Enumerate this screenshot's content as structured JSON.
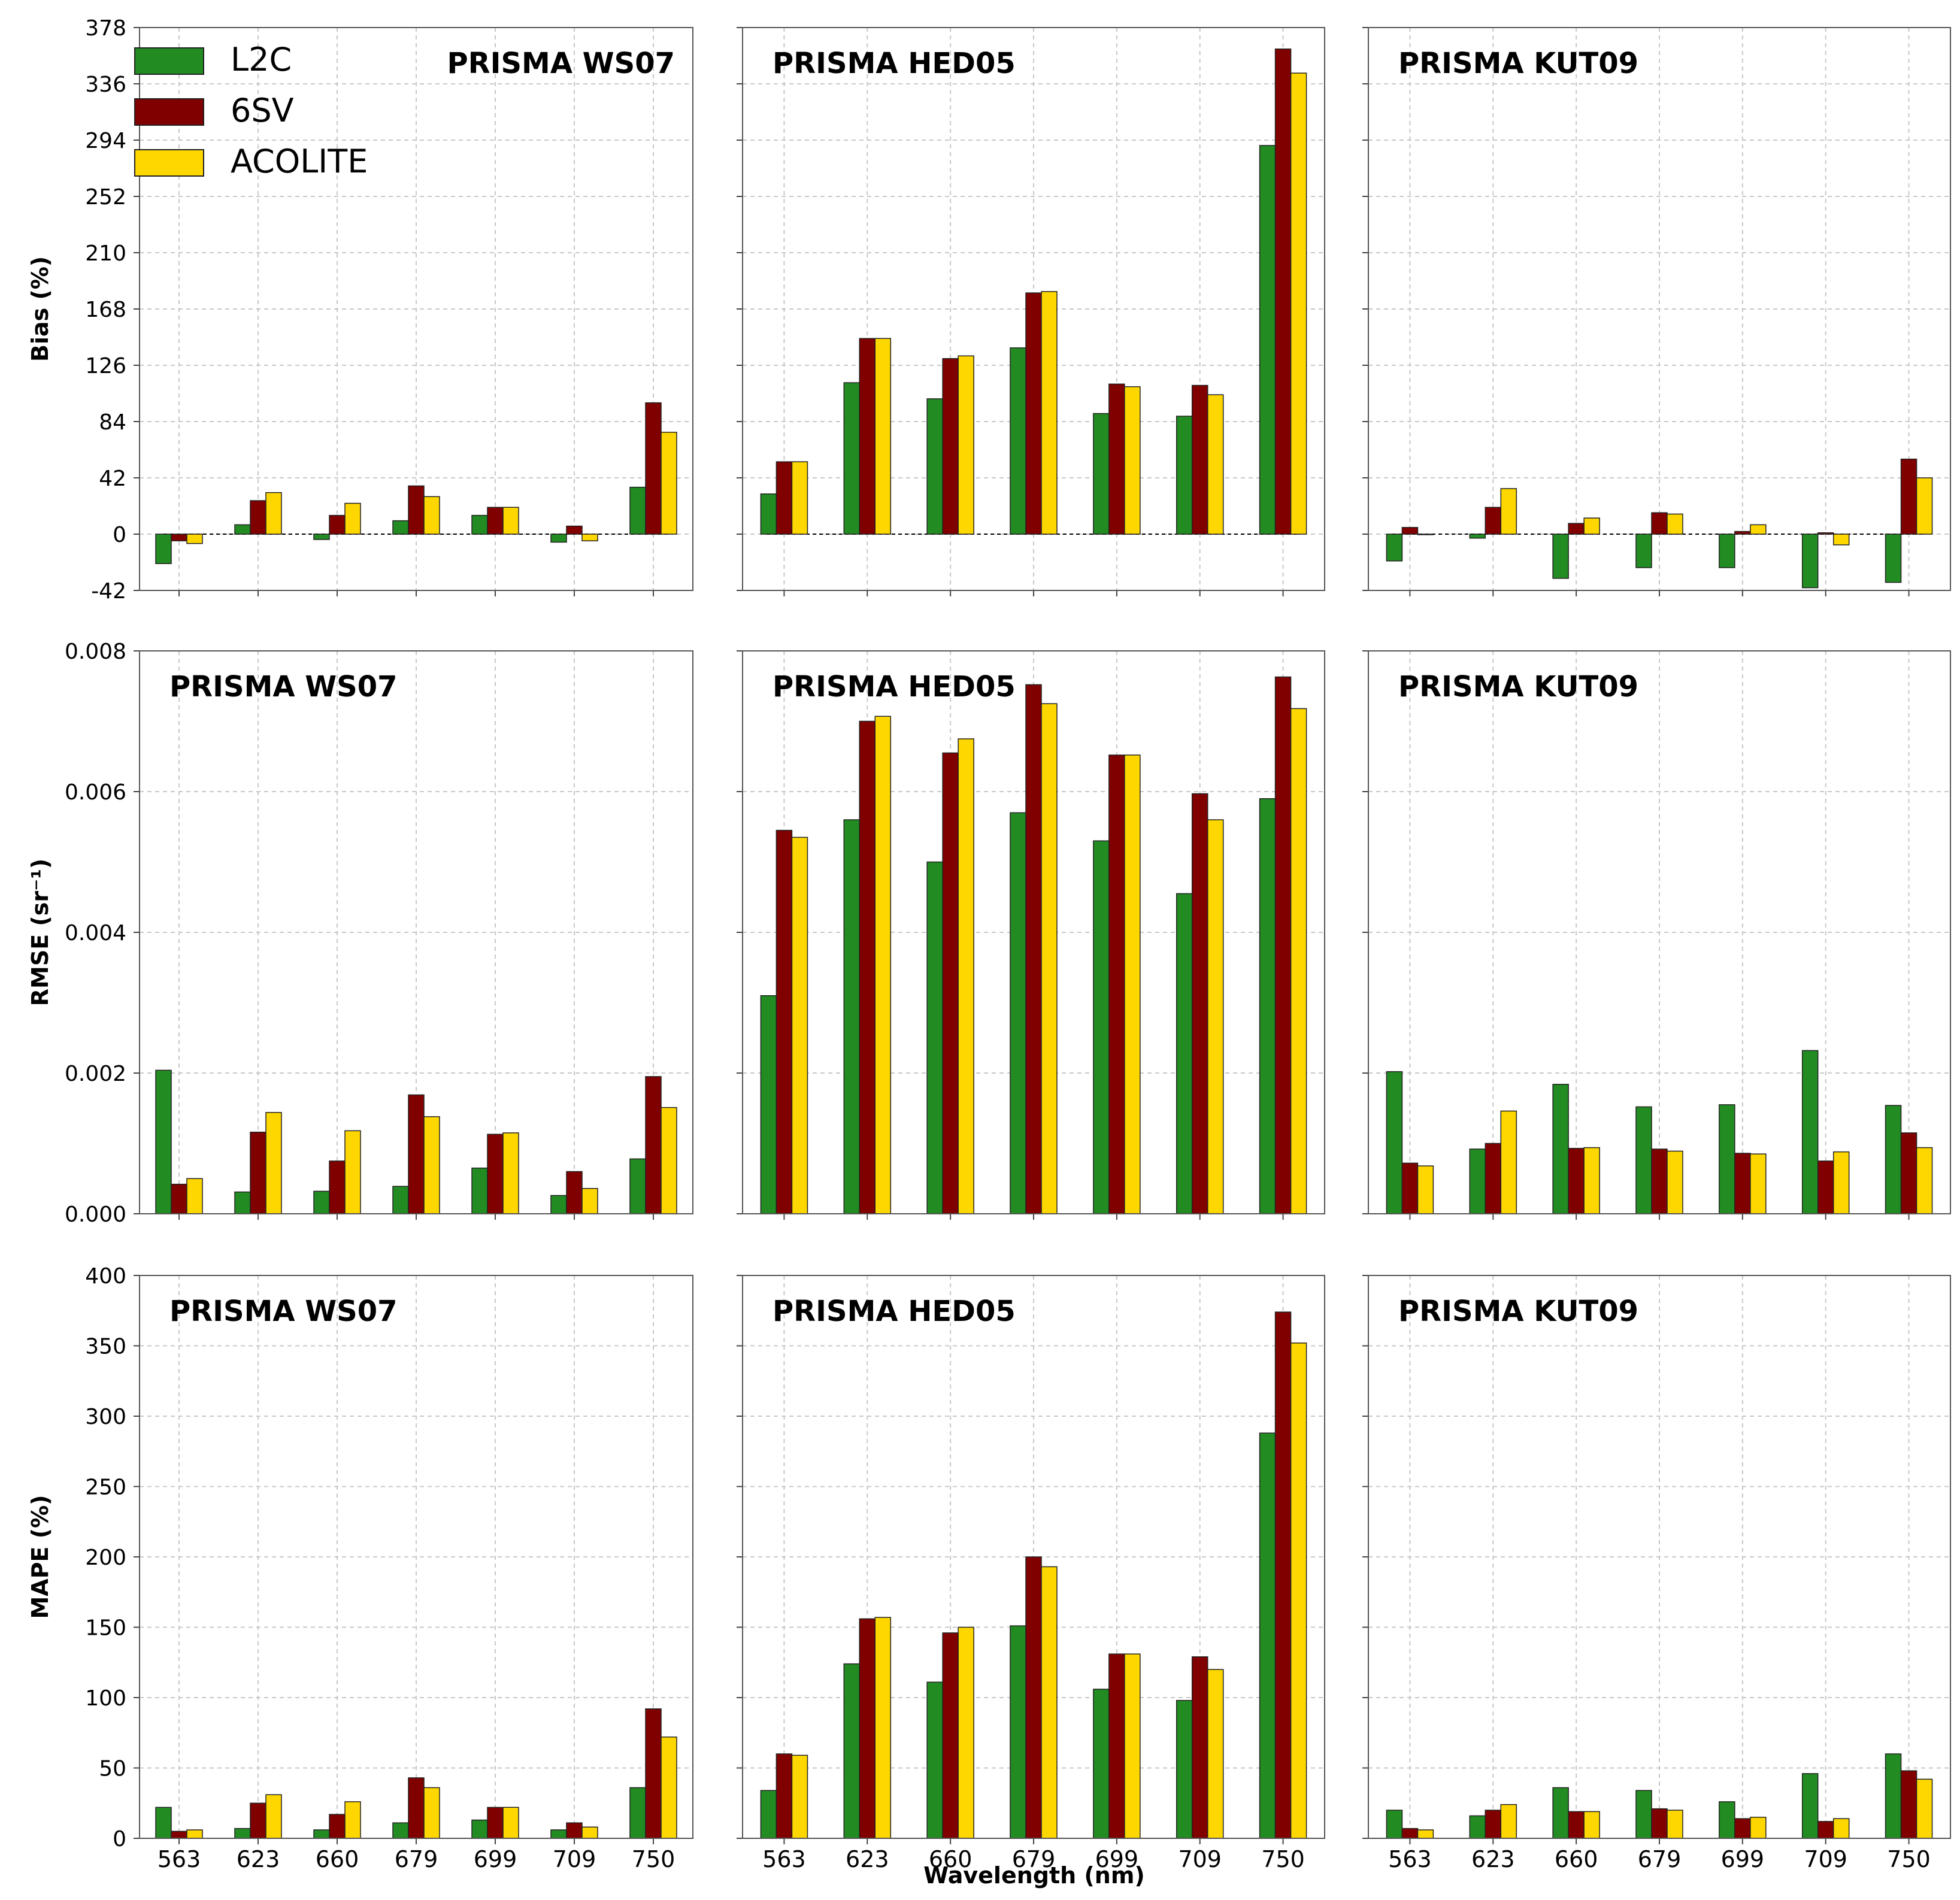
{
  "figure": {
    "categories": [
      "563",
      "623",
      "660",
      "679",
      "699",
      "709",
      "750"
    ],
    "xlabel": "Wavelength (nm)",
    "legend": [
      {
        "name": "L2C",
        "color": "#228B22"
      },
      {
        "name": "6SV",
        "color": "#800000"
      },
      {
        "name": "ACOLITE",
        "color": "#FFD700"
      }
    ],
    "rows": [
      {
        "metric": "bias",
        "ylabel": "Bias (%)",
        "ylim": [
          -42,
          378
        ],
        "ticks": [
          "378",
          "336",
          "294",
          "252",
          "210",
          "168",
          "126",
          "84",
          "42",
          "0",
          "-42"
        ]
      },
      {
        "metric": "rmse",
        "ylabel": "RMSE (sr⁻¹)",
        "ylim": [
          0,
          0.008
        ],
        "ticks": [
          "0.008",
          "0.006",
          "0.004",
          "0.002",
          "0.000"
        ]
      },
      {
        "metric": "mape",
        "ylabel": "MAPE (%)",
        "ylim": [
          0,
          400
        ],
        "ticks": [
          "400",
          "350",
          "300",
          "250",
          "200",
          "150",
          "100",
          "50",
          "0"
        ]
      }
    ]
  },
  "chart_data": [
    {
      "type": "bar",
      "title": "PRISMA WS07",
      "ylabel": "Bias (%)",
      "ylim": [
        -42,
        378
      ],
      "categories": [
        "563",
        "623",
        "660",
        "679",
        "699",
        "709",
        "750"
      ],
      "series": [
        {
          "name": "L2C",
          "values": [
            -22,
            7,
            -4,
            10,
            14,
            -6,
            35
          ]
        },
        {
          "name": "6SV",
          "values": [
            -5,
            25,
            14,
            36,
            20,
            6,
            98
          ]
        },
        {
          "name": "ACOLITE",
          "values": [
            -7,
            31,
            23,
            28,
            20,
            -5,
            76
          ]
        }
      ]
    },
    {
      "type": "bar",
      "title": "PRISMA HED05",
      "ylabel": "Bias (%)",
      "ylim": [
        -42,
        378
      ],
      "categories": [
        "563",
        "623",
        "660",
        "679",
        "699",
        "709",
        "750"
      ],
      "series": [
        {
          "name": "L2C",
          "values": [
            30,
            113,
            101,
            139,
            90,
            88,
            290
          ]
        },
        {
          "name": "6SV",
          "values": [
            54,
            146,
            131,
            180,
            112,
            111,
            362
          ]
        },
        {
          "name": "ACOLITE",
          "values": [
            54,
            146,
            133,
            181,
            110,
            104,
            344
          ]
        }
      ]
    },
    {
      "type": "bar",
      "title": "PRISMA KUT09",
      "ylabel": "Bias (%)",
      "ylim": [
        -42,
        378
      ],
      "categories": [
        "563",
        "623",
        "660",
        "679",
        "699",
        "709",
        "750"
      ],
      "series": [
        {
          "name": "L2C",
          "values": [
            -20,
            -3,
            -33,
            -25,
            -25,
            -40,
            -36
          ]
        },
        {
          "name": "6SV",
          "values": [
            5,
            20,
            8,
            16,
            2,
            1,
            56
          ]
        },
        {
          "name": "ACOLITE",
          "values": [
            0,
            34,
            12,
            15,
            7,
            -8,
            42
          ]
        }
      ]
    },
    {
      "type": "bar",
      "title": "PRISMA WS07",
      "ylabel": "RMSE (sr⁻¹)",
      "ylim": [
        0,
        0.008
      ],
      "categories": [
        "563",
        "623",
        "660",
        "679",
        "699",
        "709",
        "750"
      ],
      "series": [
        {
          "name": "L2C",
          "values": [
            0.00204,
            0.00031,
            0.00032,
            0.00039,
            0.00065,
            0.00026,
            0.00078
          ]
        },
        {
          "name": "6SV",
          "values": [
            0.00042,
            0.00116,
            0.00075,
            0.00169,
            0.00113,
            0.0006,
            0.00195
          ]
        },
        {
          "name": "ACOLITE",
          "values": [
            0.0005,
            0.00144,
            0.00118,
            0.00138,
            0.00115,
            0.00036,
            0.00151
          ]
        }
      ]
    },
    {
      "type": "bar",
      "title": "PRISMA HED05",
      "ylabel": "RMSE (sr⁻¹)",
      "ylim": [
        0,
        0.008
      ],
      "categories": [
        "563",
        "623",
        "660",
        "679",
        "699",
        "709",
        "750"
      ],
      "series": [
        {
          "name": "L2C",
          "values": [
            0.0031,
            0.0056,
            0.005,
            0.0057,
            0.0053,
            0.00455,
            0.0059
          ]
        },
        {
          "name": "6SV",
          "values": [
            0.00545,
            0.007,
            0.00655,
            0.00752,
            0.00652,
            0.00597,
            0.00763
          ]
        },
        {
          "name": "ACOLITE",
          "values": [
            0.00535,
            0.00707,
            0.00675,
            0.00725,
            0.00652,
            0.0056,
            0.00718
          ]
        }
      ]
    },
    {
      "type": "bar",
      "title": "PRISMA KUT09",
      "ylabel": "RMSE (sr⁻¹)",
      "ylim": [
        0,
        0.008
      ],
      "categories": [
        "563",
        "623",
        "660",
        "679",
        "699",
        "709",
        "750"
      ],
      "series": [
        {
          "name": "L2C",
          "values": [
            0.00202,
            0.00092,
            0.00184,
            0.00152,
            0.00155,
            0.00232,
            0.00154
          ]
        },
        {
          "name": "6SV",
          "values": [
            0.00072,
            0.001,
            0.00093,
            0.00092,
            0.00086,
            0.00075,
            0.00115
          ]
        },
        {
          "name": "ACOLITE",
          "values": [
            0.00068,
            0.00146,
            0.00094,
            0.00089,
            0.00085,
            0.00088,
            0.00094
          ]
        }
      ]
    },
    {
      "type": "bar",
      "title": "PRISMA WS07",
      "ylabel": "MAPE (%)",
      "ylim": [
        0,
        400
      ],
      "categories": [
        "563",
        "623",
        "660",
        "679",
        "699",
        "709",
        "750"
      ],
      "series": [
        {
          "name": "L2C",
          "values": [
            22,
            7,
            6,
            11,
            13,
            6,
            36
          ]
        },
        {
          "name": "6SV",
          "values": [
            5,
            25,
            17,
            43,
            22,
            11,
            92
          ]
        },
        {
          "name": "ACOLITE",
          "values": [
            6,
            31,
            26,
            36,
            22,
            8,
            72
          ]
        }
      ]
    },
    {
      "type": "bar",
      "title": "PRISMA HED05",
      "ylabel": "MAPE (%)",
      "ylim": [
        0,
        400
      ],
      "categories": [
        "563",
        "623",
        "660",
        "679",
        "699",
        "709",
        "750"
      ],
      "series": [
        {
          "name": "L2C",
          "values": [
            34,
            124,
            111,
            151,
            106,
            98,
            288
          ]
        },
        {
          "name": "6SV",
          "values": [
            60,
            156,
            146,
            200,
            131,
            129,
            374
          ]
        },
        {
          "name": "ACOLITE",
          "values": [
            59,
            157,
            150,
            193,
            131,
            120,
            352
          ]
        }
      ]
    },
    {
      "type": "bar",
      "title": "PRISMA KUT09",
      "ylabel": "MAPE (%)",
      "ylim": [
        0,
        400
      ],
      "categories": [
        "563",
        "623",
        "660",
        "679",
        "699",
        "709",
        "750"
      ],
      "series": [
        {
          "name": "L2C",
          "values": [
            20,
            16,
            36,
            34,
            26,
            46,
            60
          ]
        },
        {
          "name": "6SV",
          "values": [
            7,
            20,
            19,
            21,
            14,
            12,
            48
          ]
        },
        {
          "name": "ACOLITE",
          "values": [
            6,
            24,
            19,
            20,
            15,
            14,
            42
          ]
        }
      ]
    }
  ]
}
